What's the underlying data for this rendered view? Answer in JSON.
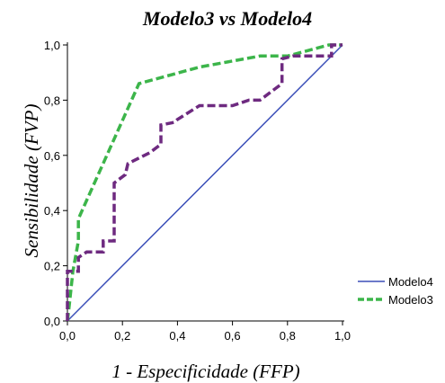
{
  "chart_data": {
    "type": "line",
    "title": "Modelo3 vs Modelo4",
    "xlabel": "1 - Especificidade (FFP)",
    "ylabel": "Sensibilidade (FVP)",
    "xlim": [
      0,
      1
    ],
    "ylim": [
      0,
      1
    ],
    "x_ticks": [
      "0,0",
      "0,2",
      "0,4",
      "0,6",
      "0,8",
      "1,0"
    ],
    "y_ticks": [
      "0,0",
      "0,2",
      "0,4",
      "0,6",
      "0,8",
      "1,0"
    ],
    "grid": false,
    "legend_position": "right",
    "series": [
      {
        "name": "Modelo4",
        "color": "#3b4fb8",
        "style": "solid",
        "points": [
          [
            0,
            0
          ],
          [
            1,
            1
          ]
        ]
      },
      {
        "name": "Modelo3",
        "color": "#3cb54a",
        "style": "dashed",
        "points": [
          [
            0,
            0
          ],
          [
            0.005,
            0.04
          ],
          [
            0.02,
            0.18
          ],
          [
            0.04,
            0.29
          ],
          [
            0.04,
            0.37
          ],
          [
            0.26,
            0.86
          ],
          [
            0.48,
            0.92
          ],
          [
            0.7,
            0.96
          ],
          [
            0.8,
            0.96
          ],
          [
            0.95,
            1.0
          ],
          [
            1,
            1
          ]
        ]
      },
      {
        "name": "",
        "color": "#6e2a80",
        "style": "dashed",
        "points": [
          [
            0,
            0
          ],
          [
            0,
            0.18
          ],
          [
            0.04,
            0.18
          ],
          [
            0.04,
            0.23
          ],
          [
            0.07,
            0.25
          ],
          [
            0.13,
            0.25
          ],
          [
            0.13,
            0.29
          ],
          [
            0.17,
            0.29
          ],
          [
            0.17,
            0.5
          ],
          [
            0.21,
            0.53
          ],
          [
            0.22,
            0.57
          ],
          [
            0.3,
            0.61
          ],
          [
            0.34,
            0.64
          ],
          [
            0.34,
            0.71
          ],
          [
            0.39,
            0.72
          ],
          [
            0.4,
            0.73
          ],
          [
            0.48,
            0.78
          ],
          [
            0.6,
            0.78
          ],
          [
            0.66,
            0.8
          ],
          [
            0.7,
            0.8
          ],
          [
            0.78,
            0.86
          ],
          [
            0.78,
            0.95
          ],
          [
            0.82,
            0.96
          ],
          [
            0.96,
            0.96
          ],
          [
            0.96,
            1.0
          ],
          [
            1,
            1
          ]
        ]
      }
    ]
  }
}
